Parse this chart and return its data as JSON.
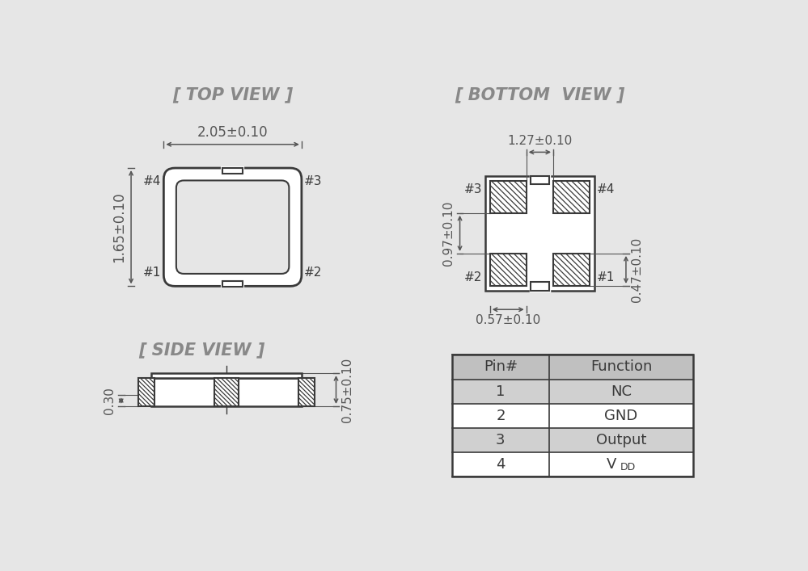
{
  "bg_color": "#e6e6e6",
  "line_color": "#3a3a3a",
  "title_color": "#888888",
  "dim_color": "#555555",
  "table_header_bg": "#c0c0c0",
  "table_row_bg_odd": "#d0d0d0",
  "table_row_bg_even": "#ffffff",
  "top_view_title": "[ TOP VIEW ]",
  "bottom_view_title": "[ BOTTOM  VIEW ]",
  "side_view_title": "[ SIDE VIEW ]",
  "top_dim_width": "2.05±0.10",
  "top_dim_height": "1.65±0.10",
  "bottom_dim_width": "1.27±0.10",
  "bottom_dim_height": "0.97±0.10",
  "bottom_dim_pad_width": "0.57±0.10",
  "bottom_dim_pad_height": "0.47±0.10",
  "side_dim_height": "0.75±0.10",
  "side_dim_pad": "0.30",
  "pin_numbers": [
    "1",
    "2",
    "3",
    "4"
  ],
  "pin_functions": [
    "NC",
    "GND",
    "Output",
    "VDD"
  ]
}
